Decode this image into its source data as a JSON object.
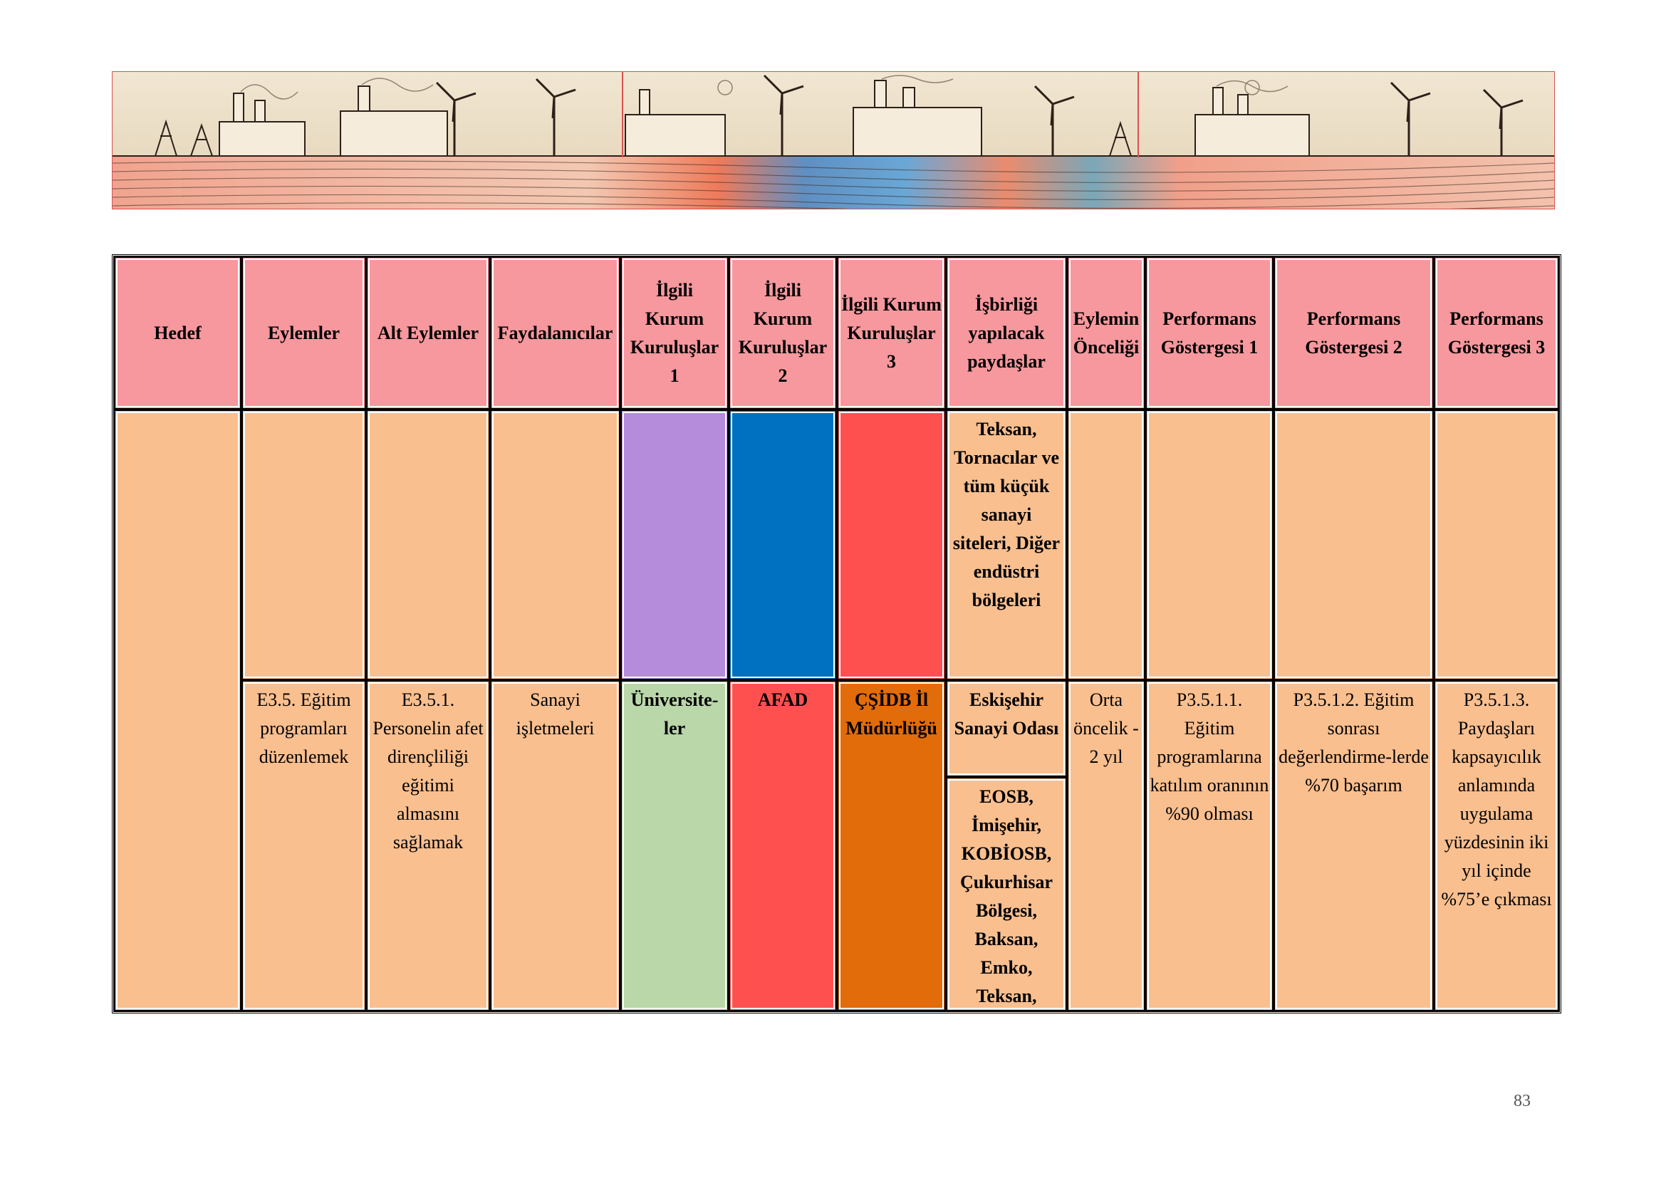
{
  "colors": {
    "header": "#f6989d",
    "body": "#f9bf8f",
    "purple": "#b48cdb",
    "blue": "#0070c0",
    "red": "#ff5050",
    "green": "#b9d7a8",
    "orange": "#e26b0a"
  },
  "banner": {
    "icon": "industry-wind-turbines-illustration"
  },
  "table": {
    "headers": [
      "Hedef",
      "Eylemler",
      "Alt Eylemler",
      "Faydalanıcılar",
      "İlgili Kurum Kuruluşlar 1",
      "İlgili Kurum Kuruluşlar 2",
      "İlgili Kurum Kuruluşlar 3",
      "İşbirliği yapılacak paydaşlar",
      "Eylemin Önceliği",
      "Performans Göstergesi 1",
      "Performans Göstergesi 2",
      "Performans Göstergesi 3"
    ],
    "row1": {
      "paydaslar": "Teksan, Tornacılar ve tüm küçük sanayi siteleri, Diğer endüstri bölgeleri"
    },
    "row2": {
      "eylem": "E3.5. Eğitim programları düzenlemek",
      "alt_eylem": "E3.5.1. Personelin afet dirençliliği eğitimi almasını sağlamak",
      "faydalanicilar": "Sanayi işletmeleri",
      "kurum1": "Üniversite-ler",
      "kurum2": "AFAD",
      "kurum3": "ÇŞİDB İl Müdürlüğü",
      "paydas_a": "Eskişehir Sanayi Odası",
      "paydas_b": "EOSB, İmişehir, KOBİOSB, Çukurhisar Bölgesi, Baksan, Emko, Teksan,",
      "oncelik": "Orta öncelik - 2 yıl",
      "pg1": "P3.5.1.1. Eğitim programlarına katılım oranının %90 olması",
      "pg2": "P3.5.1.2. Eğitim sonrası değerlendirme-lerde %70 başarım",
      "pg3": "P3.5.1.3. Paydaşları kapsayıcılık anlamında uygulama yüzdesinin iki yıl içinde %75’e çıkması"
    }
  },
  "page": {
    "number": "83"
  }
}
